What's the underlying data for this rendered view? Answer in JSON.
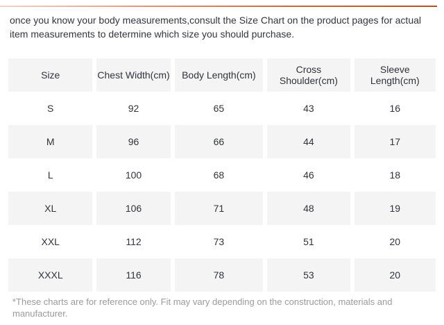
{
  "page": {
    "intro_text": "once you know your body measurements,consult the Size Chart on the product pages for actual item measurements to determine which size you should purchase.",
    "footnote_text": "*These charts are for reference only. Fit may vary depending on the construction, materials and manufacturer.",
    "accent_colors": {
      "line_gradient_start": "#f6d3c2",
      "line_gradient_end": "#b94e1f"
    },
    "table_colors": {
      "header_bg": "#f4f4f4",
      "alt_row_bg": "#f4f4f4",
      "row_bg": "#ffffff",
      "text": "#30333a",
      "footnote_text": "#9b9b9b"
    }
  },
  "size_chart": {
    "columns": [
      "Size",
      "Chest Width(cm)",
      "Body Length(cm)",
      "Cross Shoulder(cm)",
      "Sleeve Length(cm)"
    ],
    "rows": [
      [
        "S",
        "92",
        "65",
        "43",
        "16"
      ],
      [
        "M",
        "96",
        "66",
        "44",
        "17"
      ],
      [
        "L",
        "100",
        "68",
        "46",
        "18"
      ],
      [
        "XL",
        "106",
        "71",
        "48",
        "19"
      ],
      [
        "XXL",
        "112",
        "73",
        "51",
        "20"
      ],
      [
        "XXXL",
        "116",
        "78",
        "53",
        "20"
      ]
    ]
  }
}
